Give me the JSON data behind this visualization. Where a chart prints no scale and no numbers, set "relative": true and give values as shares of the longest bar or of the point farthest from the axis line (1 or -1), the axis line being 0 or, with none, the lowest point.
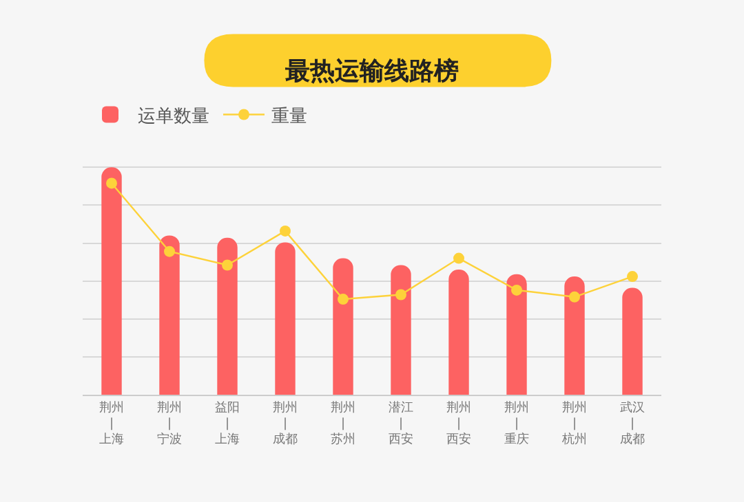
{
  "chart_data": {
    "type": "bar",
    "title": "最热运输线路榜",
    "relative": true,
    "grid": "y",
    "legend": "top left",
    "marker": "circle",
    "categories": [
      "荆州\n|\n上海",
      "荆州\n|\n宁波",
      "益阳\n|\n上海",
      "荆州\n|\n成都",
      "荆州\n|\n苏州",
      "潜江\n|\n西安",
      "荆州\n|\n西安",
      "荆州\n|\n重庆",
      "荆州\n|\n杭州",
      "武汉\n|\n成都"
    ],
    "series": [
      {
        "name": "运单数量",
        "color": "#fd6262",
        "values": [
          1,
          0.7,
          0.69,
          0.67,
          0.6,
          0.57,
          0.55,
          0.53,
          0.52,
          0.47
        ]
      },
      {
        "name": "重量",
        "type": "line",
        "color": "#fdd23a",
        "values": [
          0.93,
          0.63,
          0.57,
          0.72,
          0.42,
          0.44,
          0.6,
          0.46,
          0.43,
          0.52
        ]
      }
    ]
  }
}
